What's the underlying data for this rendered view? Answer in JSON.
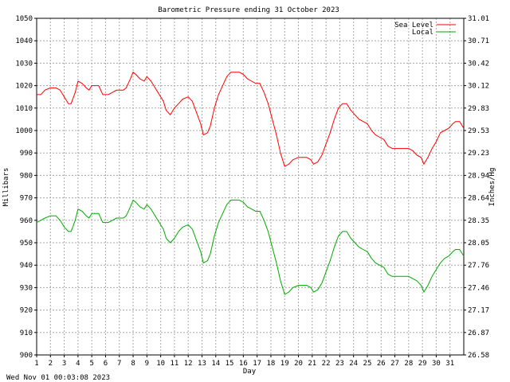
{
  "chart_data": {
    "type": "line",
    "title": "Barometric Pressure ending 31 October 2023",
    "xlabel": "Day",
    "ylabel": "Millibars",
    "y2label": "Inches/Hg",
    "xlim": [
      1,
      32
    ],
    "ylim": [
      900,
      1050
    ],
    "x_ticks": [
      "1",
      "2",
      "3",
      "4",
      "5",
      "6",
      "7",
      "8",
      "9",
      "10",
      "11",
      "12",
      "13",
      "14",
      "15",
      "16",
      "17",
      "18",
      "19",
      "20",
      "21",
      "22",
      "23",
      "24",
      "25",
      "26",
      "27",
      "28",
      "29",
      "30",
      "31"
    ],
    "y_ticks": [
      "900",
      "910",
      "920",
      "930",
      "940",
      "950",
      "960",
      "970",
      "980",
      "990",
      "1000",
      "1010",
      "1020",
      "1030",
      "1040",
      "1050"
    ],
    "y2_ticks": [
      "26.58",
      "26.87",
      "27.17",
      "27.46",
      "27.76",
      "28.05",
      "28.35",
      "28.64",
      "28.94",
      "29.23",
      "29.53",
      "29.83",
      "30.12",
      "30.42",
      "30.71",
      "31.01"
    ],
    "grid": true,
    "legend_position": "top-right",
    "series": [
      {
        "name": "Sea Level",
        "color": "#ff0000",
        "points": [
          [
            1.0,
            1016
          ],
          [
            1.3,
            1016
          ],
          [
            1.6,
            1018
          ],
          [
            2.0,
            1019
          ],
          [
            2.4,
            1019
          ],
          [
            2.7,
            1018
          ],
          [
            3.0,
            1015
          ],
          [
            3.3,
            1012
          ],
          [
            3.5,
            1012
          ],
          [
            3.8,
            1017
          ],
          [
            4.0,
            1022
          ],
          [
            4.3,
            1021
          ],
          [
            4.6,
            1019
          ],
          [
            4.8,
            1018
          ],
          [
            5.0,
            1020
          ],
          [
            5.3,
            1020
          ],
          [
            5.5,
            1020
          ],
          [
            5.8,
            1016
          ],
          [
            6.2,
            1016
          ],
          [
            6.5,
            1017
          ],
          [
            6.8,
            1018
          ],
          [
            7.0,
            1018
          ],
          [
            7.3,
            1018
          ],
          [
            7.5,
            1019
          ],
          [
            7.8,
            1023
          ],
          [
            8.0,
            1026
          ],
          [
            8.2,
            1025
          ],
          [
            8.5,
            1023
          ],
          [
            8.8,
            1022
          ],
          [
            9.0,
            1024
          ],
          [
            9.3,
            1022
          ],
          [
            9.6,
            1019
          ],
          [
            9.9,
            1016
          ],
          [
            10.2,
            1013
          ],
          [
            10.4,
            1009
          ],
          [
            10.7,
            1007
          ],
          [
            11.0,
            1010
          ],
          [
            11.3,
            1012
          ],
          [
            11.6,
            1014
          ],
          [
            12.0,
            1015
          ],
          [
            12.3,
            1013
          ],
          [
            12.6,
            1008
          ],
          [
            12.9,
            1003
          ],
          [
            13.1,
            998
          ],
          [
            13.4,
            999
          ],
          [
            13.6,
            1002
          ],
          [
            13.9,
            1010
          ],
          [
            14.2,
            1016
          ],
          [
            14.5,
            1020
          ],
          [
            14.8,
            1024
          ],
          [
            15.1,
            1026
          ],
          [
            15.4,
            1026
          ],
          [
            15.7,
            1026
          ],
          [
            16.0,
            1025
          ],
          [
            16.3,
            1023
          ],
          [
            16.6,
            1022
          ],
          [
            16.9,
            1021
          ],
          [
            17.2,
            1021
          ],
          [
            17.5,
            1017
          ],
          [
            17.8,
            1012
          ],
          [
            18.1,
            1005
          ],
          [
            18.4,
            998
          ],
          [
            18.7,
            990
          ],
          [
            19.0,
            984
          ],
          [
            19.3,
            985
          ],
          [
            19.6,
            987
          ],
          [
            20.0,
            988
          ],
          [
            20.3,
            988
          ],
          [
            20.6,
            988
          ],
          [
            20.9,
            987
          ],
          [
            21.1,
            985
          ],
          [
            21.4,
            986
          ],
          [
            21.7,
            989
          ],
          [
            22.0,
            994
          ],
          [
            22.3,
            999
          ],
          [
            22.6,
            1005
          ],
          [
            22.9,
            1010
          ],
          [
            23.2,
            1012
          ],
          [
            23.5,
            1012
          ],
          [
            23.8,
            1009
          ],
          [
            24.1,
            1007
          ],
          [
            24.4,
            1005
          ],
          [
            24.7,
            1004
          ],
          [
            25.0,
            1003
          ],
          [
            25.3,
            1000
          ],
          [
            25.6,
            998
          ],
          [
            25.9,
            997
          ],
          [
            26.2,
            996
          ],
          [
            26.5,
            993
          ],
          [
            26.8,
            992
          ],
          [
            27.2,
            992
          ],
          [
            27.6,
            992
          ],
          [
            28.0,
            992
          ],
          [
            28.3,
            991
          ],
          [
            28.6,
            989
          ],
          [
            28.9,
            988
          ],
          [
            29.1,
            985
          ],
          [
            29.4,
            988
          ],
          [
            29.7,
            992
          ],
          [
            30.0,
            995
          ],
          [
            30.3,
            999
          ],
          [
            30.6,
            1000
          ],
          [
            30.9,
            1001
          ],
          [
            31.2,
            1003
          ],
          [
            31.4,
            1004
          ],
          [
            31.7,
            1004
          ],
          [
            32.0,
            1001
          ]
        ]
      },
      {
        "name": "Local",
        "color": "#00aa00",
        "points": [
          [
            1.0,
            959
          ],
          [
            1.3,
            960
          ],
          [
            1.6,
            961
          ],
          [
            2.0,
            962
          ],
          [
            2.4,
            962
          ],
          [
            2.7,
            960
          ],
          [
            3.0,
            957
          ],
          [
            3.3,
            955
          ],
          [
            3.5,
            955
          ],
          [
            3.8,
            960
          ],
          [
            4.0,
            965
          ],
          [
            4.3,
            964
          ],
          [
            4.6,
            962
          ],
          [
            4.8,
            961
          ],
          [
            5.0,
            963
          ],
          [
            5.3,
            963
          ],
          [
            5.5,
            963
          ],
          [
            5.8,
            959
          ],
          [
            6.2,
            959
          ],
          [
            6.5,
            960
          ],
          [
            6.8,
            961
          ],
          [
            7.0,
            961
          ],
          [
            7.3,
            961
          ],
          [
            7.5,
            962
          ],
          [
            7.8,
            966
          ],
          [
            8.0,
            969
          ],
          [
            8.2,
            968
          ],
          [
            8.5,
            966
          ],
          [
            8.8,
            965
          ],
          [
            9.0,
            967
          ],
          [
            9.3,
            965
          ],
          [
            9.6,
            962
          ],
          [
            9.9,
            959
          ],
          [
            10.2,
            956
          ],
          [
            10.4,
            952
          ],
          [
            10.7,
            950
          ],
          [
            11.0,
            952
          ],
          [
            11.3,
            955
          ],
          [
            11.6,
            957
          ],
          [
            12.0,
            958
          ],
          [
            12.3,
            956
          ],
          [
            12.6,
            951
          ],
          [
            12.9,
            946
          ],
          [
            13.1,
            941
          ],
          [
            13.4,
            942
          ],
          [
            13.6,
            945
          ],
          [
            13.9,
            953
          ],
          [
            14.2,
            959
          ],
          [
            14.5,
            963
          ],
          [
            14.8,
            967
          ],
          [
            15.1,
            969
          ],
          [
            15.4,
            969
          ],
          [
            15.7,
            969
          ],
          [
            16.0,
            968
          ],
          [
            16.3,
            966
          ],
          [
            16.6,
            965
          ],
          [
            16.9,
            964
          ],
          [
            17.2,
            964
          ],
          [
            17.5,
            960
          ],
          [
            17.8,
            955
          ],
          [
            18.1,
            948
          ],
          [
            18.4,
            941
          ],
          [
            18.7,
            933
          ],
          [
            19.0,
            927
          ],
          [
            19.3,
            928
          ],
          [
            19.6,
            930
          ],
          [
            20.0,
            931
          ],
          [
            20.3,
            931
          ],
          [
            20.6,
            931
          ],
          [
            20.9,
            930
          ],
          [
            21.1,
            928
          ],
          [
            21.4,
            929
          ],
          [
            21.7,
            932
          ],
          [
            22.0,
            937
          ],
          [
            22.3,
            942
          ],
          [
            22.6,
            948
          ],
          [
            22.9,
            953
          ],
          [
            23.2,
            955
          ],
          [
            23.5,
            955
          ],
          [
            23.8,
            952
          ],
          [
            24.1,
            950
          ],
          [
            24.4,
            948
          ],
          [
            24.7,
            947
          ],
          [
            25.0,
            946
          ],
          [
            25.3,
            943
          ],
          [
            25.6,
            941
          ],
          [
            25.9,
            940
          ],
          [
            26.2,
            939
          ],
          [
            26.5,
            936
          ],
          [
            26.8,
            935
          ],
          [
            27.2,
            935
          ],
          [
            27.6,
            935
          ],
          [
            28.0,
            935
          ],
          [
            28.3,
            934
          ],
          [
            28.6,
            933
          ],
          [
            28.9,
            931
          ],
          [
            29.1,
            928
          ],
          [
            29.4,
            931
          ],
          [
            29.7,
            935
          ],
          [
            30.0,
            938
          ],
          [
            30.3,
            941
          ],
          [
            30.6,
            943
          ],
          [
            30.9,
            944
          ],
          [
            31.2,
            946
          ],
          [
            31.4,
            947
          ],
          [
            31.7,
            947
          ],
          [
            32.0,
            944
          ]
        ]
      }
    ]
  },
  "footer": {
    "timestamp": "Wed Nov 01 00:03:08 2023"
  }
}
